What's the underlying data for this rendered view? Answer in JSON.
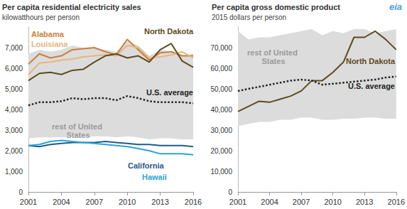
{
  "logo": "eia",
  "chart_data": [
    {
      "type": "line",
      "title": "Per capita residential electricity sales",
      "subtitle": "kilowatthours per person",
      "x": [
        2001,
        2002,
        2003,
        2004,
        2005,
        2006,
        2007,
        2008,
        2009,
        2010,
        2011,
        2012,
        2013,
        2014,
        2015,
        2016
      ],
      "xlim": [
        2001,
        2016
      ],
      "xticks": [
        2001,
        2004,
        2007,
        2010,
        2013,
        2016
      ],
      "ylim": [
        0,
        8000
      ],
      "yticks": [
        0,
        {
          "value": 1000,
          "label": "1,000"
        },
        {
          "value": 2000,
          "label": "2,000"
        },
        {
          "value": 3000,
          "label": "3,000"
        },
        {
          "value": 4000,
          "label": "4,000"
        },
        {
          "value": 5000,
          "label": "5,000"
        },
        {
          "value": 6000,
          "label": "6,000"
        },
        {
          "value": 7000,
          "label": "7,000"
        }
      ],
      "grid": false,
      "series": [
        {
          "name": "Alabama",
          "color": "#c8803c",
          "values": [
            6200,
            6700,
            6500,
            6600,
            6900,
            6950,
            7000,
            6800,
            6650,
            7400,
            6900,
            6400,
            6750,
            6800,
            6600,
            6600
          ]
        },
        {
          "name": "Louisiana",
          "color": "#e9b47e",
          "values": [
            5700,
            6250,
            6300,
            6400,
            6450,
            6550,
            6600,
            6650,
            6600,
            7100,
            7000,
            6500,
            6550,
            6650,
            6800,
            6500
          ]
        },
        {
          "name": "North Dakota",
          "color": "#5e4b1c",
          "values": [
            5400,
            5750,
            5800,
            5700,
            5900,
            5950,
            6300,
            6600,
            6700,
            6500,
            6600,
            6300,
            6900,
            7200,
            6350,
            6050
          ]
        },
        {
          "name": "U.S. average",
          "color": "#222222",
          "line_style": "dotted",
          "values": [
            4200,
            4350,
            4350,
            4400,
            4550,
            4500,
            4550,
            4550,
            4450,
            4650,
            4550,
            4400,
            4350,
            4350,
            4350,
            4300
          ]
        },
        {
          "name": "California",
          "color": "#1f5c8a",
          "values": [
            2250,
            2200,
            2300,
            2350,
            2400,
            2400,
            2400,
            2450,
            2400,
            2350,
            2300,
            2300,
            2250,
            2250,
            2250,
            2200
          ]
        },
        {
          "name": "Hawaii",
          "color": "#2aa4d6",
          "values": [
            2250,
            2300,
            2450,
            2500,
            2450,
            2400,
            2350,
            2300,
            2250,
            2200,
            2100,
            2000,
            1850,
            1850,
            1850,
            1800
          ]
        },
        {
          "name": "rest of United States",
          "type": "band",
          "color": "#dcdcdc",
          "values": [
            [
              2600,
              6700
            ],
            [
              2650,
              6900
            ],
            [
              2650,
              6800
            ],
            [
              2650,
              6900
            ],
            [
              2700,
              7100
            ],
            [
              2650,
              7000
            ],
            [
              2700,
              7000
            ],
            [
              2700,
              6900
            ],
            [
              2650,
              6800
            ],
            [
              2700,
              7300
            ],
            [
              2650,
              7100
            ],
            [
              2550,
              6600
            ],
            [
              2600,
              6900
            ],
            [
              2600,
              6800
            ],
            [
              2550,
              6600
            ],
            [
              2550,
              6700
            ]
          ]
        }
      ]
    },
    {
      "type": "line",
      "title": "Per capita gross domestic product",
      "subtitle": "2015 dollars per person",
      "x": [
        2001,
        2002,
        2003,
        2004,
        2005,
        2006,
        2007,
        2008,
        2009,
        2010,
        2011,
        2012,
        2013,
        2014,
        2015,
        2016
      ],
      "xlim": [
        2001,
        2016
      ],
      "xticks": [
        2001,
        2004,
        2007,
        2010,
        2013,
        2016
      ],
      "ylim": [
        0,
        80000
      ],
      "yticks": [
        0,
        {
          "value": 10000,
          "label": "10,000"
        },
        {
          "value": 20000,
          "label": "20,000"
        },
        {
          "value": 30000,
          "label": "30,000"
        },
        {
          "value": 40000,
          "label": "40,000"
        },
        {
          "value": 50000,
          "label": "50,000"
        },
        {
          "value": 60000,
          "label": "60,000"
        },
        {
          "value": 70000,
          "label": "70,000"
        }
      ],
      "grid": false,
      "series": [
        {
          "name": "North Dakota",
          "color": "#5e4b1c",
          "values": [
            39000,
            41500,
            44000,
            43500,
            45000,
            46500,
            49000,
            54000,
            54000,
            58000,
            63000,
            75000,
            75000,
            78000,
            74000,
            69000
          ]
        },
        {
          "name": "U.S. average",
          "color": "#222222",
          "line_style": "dotted",
          "values": [
            49000,
            50000,
            51000,
            52000,
            53000,
            54000,
            54500,
            54000,
            52000,
            52500,
            53000,
            53500,
            54000,
            54500,
            55500,
            56000
          ]
        },
        {
          "name": "rest of United States",
          "type": "band",
          "color": "#dcdcdc",
          "values": [
            [
              32000,
              78000
            ],
            [
              33000,
              74000
            ],
            [
              34000,
              75000
            ],
            [
              34000,
              75000
            ],
            [
              35000,
              76000
            ],
            [
              35000,
              77000
            ],
            [
              36000,
              78000
            ],
            [
              36000,
              79000
            ],
            [
              35000,
              76000
            ],
            [
              35000,
              78000
            ],
            [
              35500,
              77000
            ],
            [
              35500,
              79000
            ],
            [
              36000,
              79000
            ],
            [
              36000,
              77000
            ],
            [
              35500,
              78000
            ],
            [
              35500,
              79000
            ]
          ]
        }
      ]
    }
  ]
}
